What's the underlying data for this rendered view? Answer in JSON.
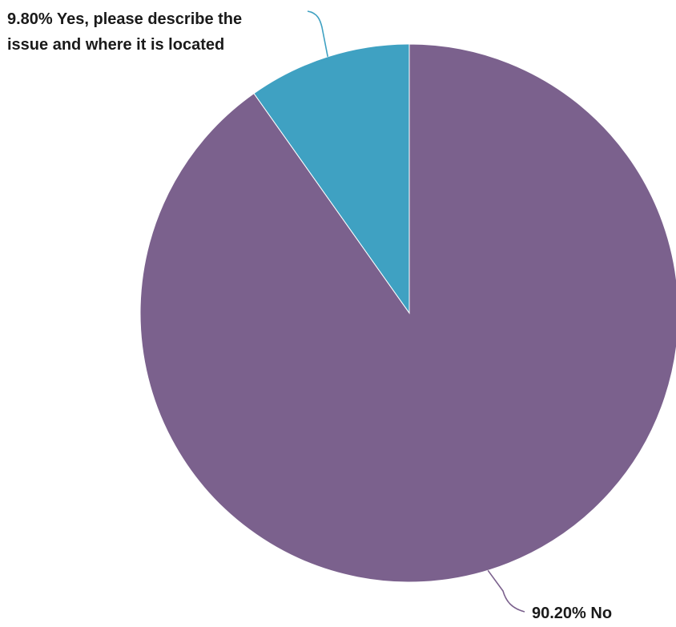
{
  "chart_data": {
    "type": "pie",
    "title": "",
    "slices": [
      {
        "name": "Yes, please describe the issue and where it is located",
        "value": 9.8,
        "label_lines": [
          "9.80% Yes, please describe the",
          "issue and where it is located"
        ],
        "color": "#3fa1c2"
      },
      {
        "name": "No",
        "value": 90.2,
        "label_lines": [
          "90.20% No"
        ],
        "color": "#7b618d"
      }
    ],
    "start_angle": "12 o'clock",
    "direction": "counter-clockwise",
    "legend": "none",
    "data_labels": "outside with leader lines"
  }
}
